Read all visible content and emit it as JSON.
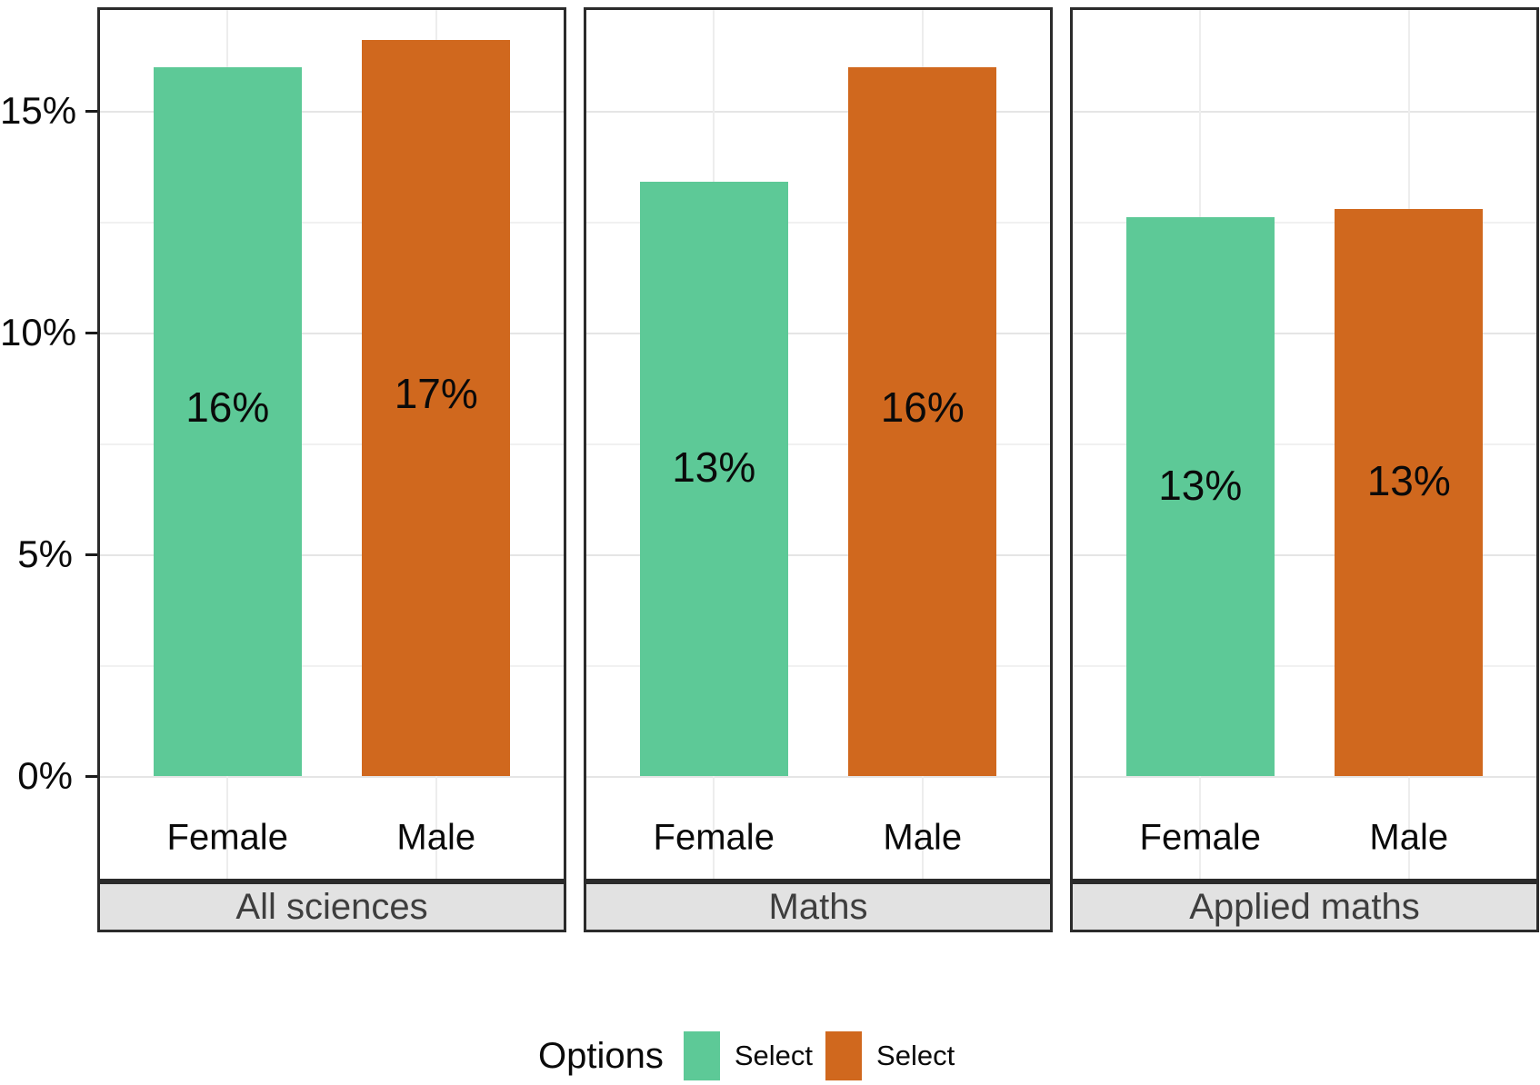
{
  "chart_data": {
    "type": "bar",
    "title": "",
    "unit": "percent",
    "categories": [
      "Female",
      "Male"
    ],
    "facets": [
      {
        "label": "All sciences",
        "bars": [
          {
            "category": "Female",
            "option": "Select",
            "value": 16.0,
            "label": "16%"
          },
          {
            "category": "Male",
            "option": "Select",
            "value": 16.6,
            "label": "17%"
          }
        ]
      },
      {
        "label": "Maths",
        "bars": [
          {
            "category": "Female",
            "option": "Select",
            "value": 13.4,
            "label": "13%"
          },
          {
            "category": "Male",
            "option": "Select",
            "value": 16.0,
            "label": "16%"
          }
        ]
      },
      {
        "label": "Applied maths",
        "bars": [
          {
            "category": "Female",
            "option": "Select",
            "value": 12.6,
            "label": "13%"
          },
          {
            "category": "Male",
            "option": "Select",
            "value": 12.8,
            "label": "13%"
          }
        ]
      }
    ],
    "y_axis": {
      "tick_labels": [
        "0%",
        "5%",
        "10%",
        "15%"
      ],
      "tick_values": [
        0,
        5,
        10,
        15
      ],
      "minor_values": [
        2.5,
        7.5,
        12.5
      ],
      "ylim": [
        0,
        17.3
      ],
      "grid": true
    },
    "legend": {
      "title": "Options",
      "position": "bottom",
      "items": [
        {
          "label": "Select",
          "color": "#5dc997"
        },
        {
          "label": "Select",
          "color": "#d0681e"
        }
      ]
    },
    "colors": {
      "female_bar": "#5dc997",
      "male_bar": "#d0681e",
      "strip_background": "#e2e2e2",
      "panel_border": "#2b2b2b"
    }
  }
}
